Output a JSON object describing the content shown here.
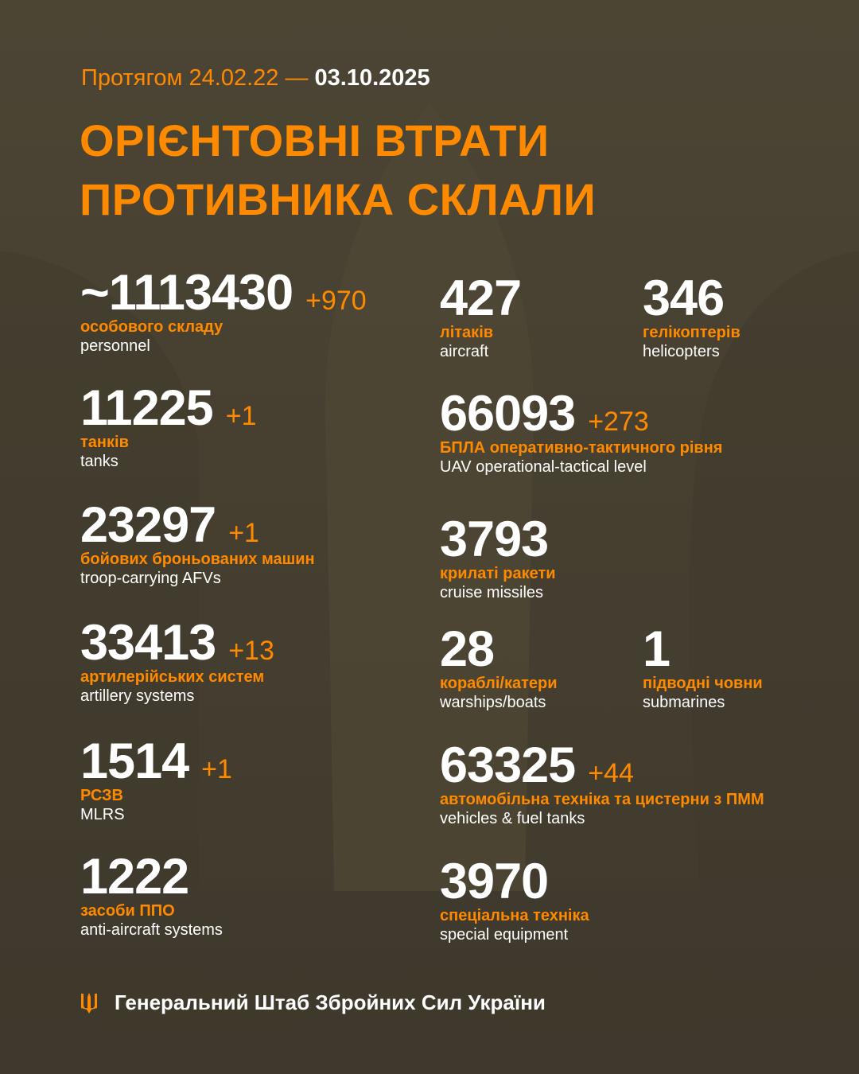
{
  "header": {
    "period_prefix": "Протягом 24.02.22 —",
    "period_end": "03.10.2025",
    "title_line1": "ОРІЄНТОВНІ ВТРАТИ",
    "title_line2": "ПРОТИВНИКА СКЛАЛИ"
  },
  "colors": {
    "accent": "#ff8a00",
    "background": "#4a4333",
    "text": "#ffffff"
  },
  "stats": {
    "personnel": {
      "value": "~1113430",
      "delta": "+970",
      "uk": "особового складу",
      "en": "personnel"
    },
    "tanks": {
      "value": "11225",
      "delta": "+1",
      "uk": "танків",
      "en": "tanks"
    },
    "afv": {
      "value": "23297",
      "delta": "+1",
      "uk": "бойових броньованих машин",
      "en": "troop-carrying AFVs"
    },
    "artillery": {
      "value": "33413",
      "delta": "+13",
      "uk": "артилерійських систем",
      "en": "artillery systems"
    },
    "mlrs": {
      "value": "1514",
      "delta": "+1",
      "uk": "РСЗВ",
      "en": "MLRS"
    },
    "aa": {
      "value": "1222",
      "uk": "засоби ППО",
      "en": "anti-aircraft systems"
    },
    "aircraft": {
      "value": "427",
      "uk": "літаків",
      "en": "aircraft"
    },
    "helicopters": {
      "value": "346",
      "uk": "гелікоптерів",
      "en": "helicopters"
    },
    "uav": {
      "value": "66093",
      "delta": "+273",
      "uk": "БПЛА оперативно-тактичного рівня",
      "en": "UAV operational-tactical level"
    },
    "cruise": {
      "value": "3793",
      "uk": "крилаті ракети",
      "en": "cruise missiles"
    },
    "ships": {
      "value": "28",
      "uk": "кораблі/катери",
      "en": "warships/boats"
    },
    "submarines": {
      "value": "1",
      "uk": "підводні човни",
      "en": "submarines"
    },
    "vehicles": {
      "value": "63325",
      "delta": "+44",
      "uk": "автомобільна техніка та цистерни з ПММ",
      "en": "vehicles & fuel tanks"
    },
    "special": {
      "value": "3970",
      "uk": "спеціальна техніка",
      "en": "special equipment"
    }
  },
  "footer": {
    "icon": "trident-icon",
    "text": "Генеральний Штаб Збройних Сил України"
  }
}
